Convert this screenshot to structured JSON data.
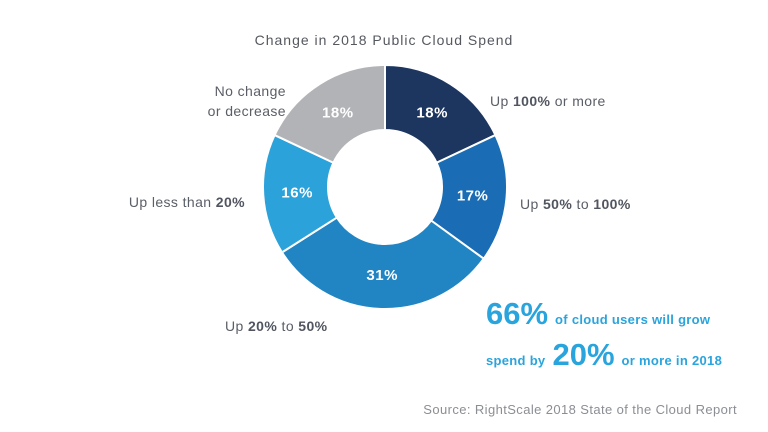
{
  "title": "Change in 2018 Public Cloud Spend",
  "chart_data": {
    "type": "pie",
    "variant": "donut",
    "title": "Change in 2018 Public Cloud Spend",
    "start_angle_deg": 0,
    "direction": "clockwise",
    "inner_radius_ratio": 0.47,
    "slices": [
      {
        "label": "Up 100% or more",
        "value": 18,
        "pct_label": "18%",
        "color": "#1d3660"
      },
      {
        "label": "Up 50% to 100%",
        "value": 17,
        "pct_label": "17%",
        "color": "#1a6db4"
      },
      {
        "label": "Up 20% to 50%",
        "value": 31,
        "pct_label": "31%",
        "color": "#2185c4"
      },
      {
        "label": "Up less than 20%",
        "value": 16,
        "pct_label": "16%",
        "color": "#2ba2da"
      },
      {
        "label": "No change or decrease",
        "value": 18,
        "pct_label": "18%",
        "color": "#b1b3b6"
      }
    ]
  },
  "callouts": {
    "up_100": [
      {
        "t": "Up ",
        "b": false
      },
      {
        "t": "100%",
        "b": true
      },
      {
        "t": " or more",
        "b": false
      }
    ],
    "up_50_100": [
      {
        "t": "Up ",
        "b": false
      },
      {
        "t": "50%",
        "b": true
      },
      {
        "t": " to ",
        "b": false
      },
      {
        "t": "100%",
        "b": true
      }
    ],
    "up_20_50": [
      {
        "t": "Up ",
        "b": false
      },
      {
        "t": "20%",
        "b": true
      },
      {
        "t": " to ",
        "b": false
      },
      {
        "t": "50%",
        "b": true
      }
    ],
    "up_less_20": [
      {
        "t": "Up less than ",
        "b": false
      },
      {
        "t": "20%",
        "b": true
      }
    ],
    "no_change_line1": "No change",
    "no_change_line2": "or decrease"
  },
  "annotation": {
    "color": "#29a4dd",
    "line1": [
      {
        "t": "66%",
        "big": true,
        "padRight": true
      },
      {
        "t": "of cloud users will grow",
        "big": false
      }
    ],
    "line2": [
      {
        "t": "spend by",
        "big": false,
        "padRight": true
      },
      {
        "t": "20%",
        "big": true,
        "padRight": true
      },
      {
        "t": "or more in 2018",
        "big": false
      }
    ]
  },
  "source": "Source: RightScale 2018 State of the Cloud Report"
}
